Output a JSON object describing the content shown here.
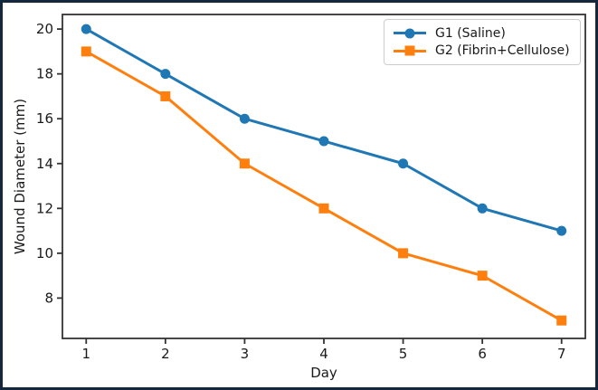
{
  "window": {
    "background_color": "#ffffff",
    "border_color": "#15273c"
  },
  "chart_data": {
    "type": "line",
    "title": "",
    "xlabel": "Day",
    "ylabel": "Wound Diameter (mm)",
    "x": [
      1,
      2,
      3,
      4,
      5,
      6,
      7
    ],
    "series": [
      {
        "name": "G1 (Saline)",
        "color": "#1f77b4",
        "marker": "circle",
        "values": [
          20,
          18,
          16,
          15,
          14,
          12,
          11
        ]
      },
      {
        "name": "G2 (Fibrin+Cellulose)",
        "color": "#ff7f0e",
        "marker": "square",
        "values": [
          19,
          17,
          14,
          12,
          10,
          9,
          7
        ]
      }
    ],
    "xticks": [
      1,
      2,
      3,
      4,
      5,
      6,
      7
    ],
    "yticks": [
      8,
      10,
      12,
      14,
      16,
      18,
      20
    ],
    "xlim": [
      0.7,
      7.3
    ],
    "ylim": [
      6.2,
      20.65
    ],
    "grid": false,
    "legend_position": "upper right",
    "axis_color": "#333333",
    "text_color": "#1a1a1a"
  }
}
